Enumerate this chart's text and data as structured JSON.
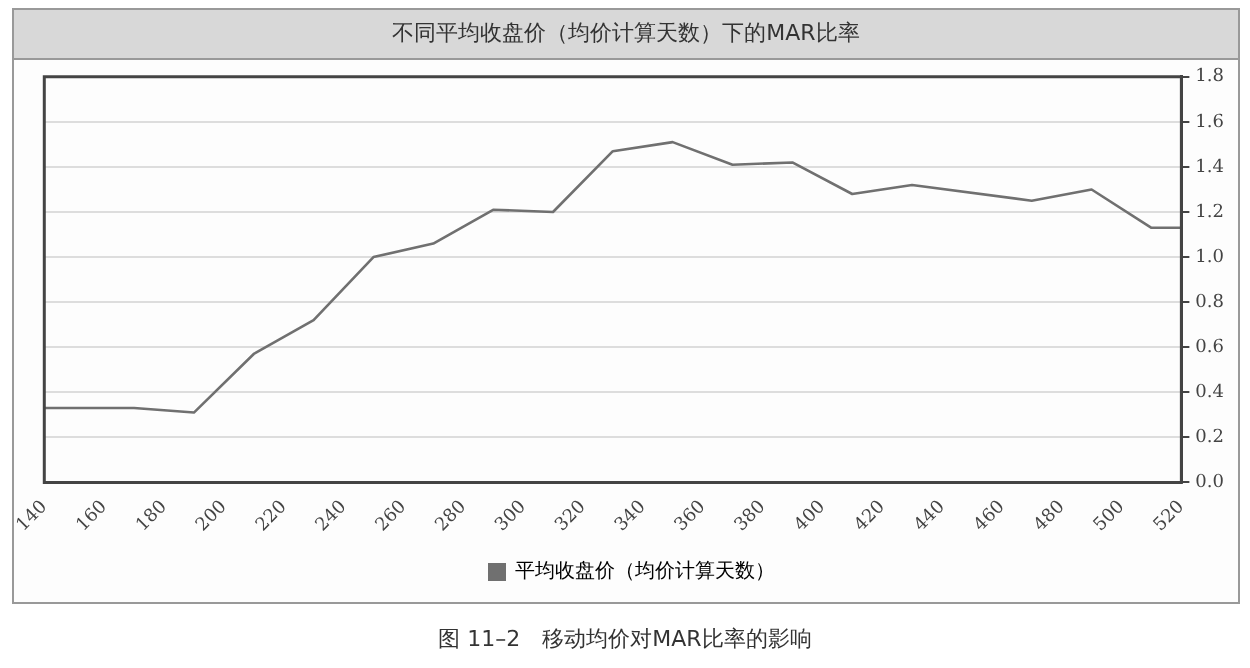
{
  "chart_data": {
    "type": "line",
    "title": "不同平均收盘价（均价计算天数）下的MAR比率",
    "x": [
      140,
      170,
      190,
      210,
      230,
      250,
      270,
      290,
      310,
      330,
      350,
      370,
      390,
      410,
      430,
      470,
      490,
      510,
      520
    ],
    "series": [
      {
        "name": "平均收盘价（均价计算天数）",
        "color": "#707070",
        "values": [
          0.33,
          0.33,
          0.31,
          0.57,
          0.72,
          1.0,
          1.06,
          1.21,
          1.2,
          1.47,
          1.51,
          1.41,
          1.42,
          1.28,
          1.32,
          1.25,
          1.3,
          1.13,
          1.13
        ]
      }
    ],
    "xlim": [
      140,
      520
    ],
    "xticks": [
      140,
      160,
      180,
      200,
      220,
      240,
      260,
      280,
      300,
      320,
      340,
      360,
      380,
      400,
      420,
      440,
      460,
      480,
      500,
      520
    ],
    "ylim": [
      0,
      1.8
    ],
    "yticks": [
      {
        "value": 0,
        "label": "0.0"
      },
      {
        "value": 0.2,
        "label": "0.2"
      },
      {
        "value": 0.4,
        "label": "0.4"
      },
      {
        "value": 0.6,
        "label": "0.6"
      },
      {
        "value": 0.8,
        "label": "0.8"
      },
      {
        "value": 1,
        "label": "1.0"
      },
      {
        "value": 1.2,
        "label": "1.2"
      },
      {
        "value": 1.4,
        "label": "1.4"
      },
      {
        "value": 1.6,
        "label": "1.6"
      },
      {
        "value": 1.8,
        "label": "1.8"
      }
    ],
    "grid": "y",
    "legend": "bottom",
    "marker": "none",
    "line_style": "solid",
    "annotations": [
      "图 11–2　移动均价对MAR比率的影响"
    ]
  }
}
